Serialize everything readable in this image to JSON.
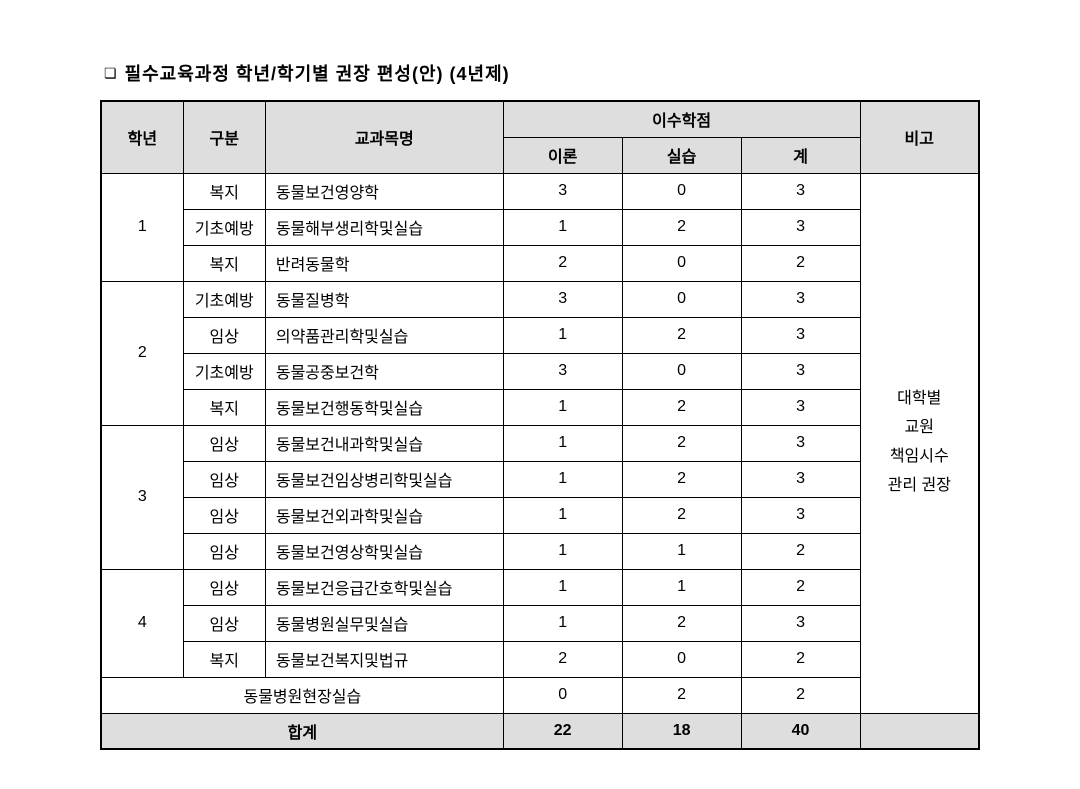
{
  "title": "필수교육과정 학년/학기별 권장 편성(안) (4년제)",
  "header": {
    "grade": "학년",
    "category": "구분",
    "subject": "교과목명",
    "credit": "이수학점",
    "theory": "이론",
    "practice": "실습",
    "total": "계",
    "note": "비고"
  },
  "groups": [
    {
      "grade": "1",
      "rows": [
        {
          "cat": "복지",
          "subject": "동물보건영양학",
          "theory": "3",
          "practice": "0",
          "total": "3"
        },
        {
          "cat": "기초예방",
          "subject": "동물해부생리학및실습",
          "theory": "1",
          "practice": "2",
          "total": "3"
        },
        {
          "cat": "복지",
          "subject": "반려동물학",
          "theory": "2",
          "practice": "0",
          "total": "2"
        }
      ]
    },
    {
      "grade": "2",
      "rows": [
        {
          "cat": "기초예방",
          "subject": "동물질병학",
          "theory": "3",
          "practice": "0",
          "total": "3"
        },
        {
          "cat": "임상",
          "subject": "의약품관리학및실습",
          "theory": "1",
          "practice": "2",
          "total": "3"
        },
        {
          "cat": "기초예방",
          "subject": "동물공중보건학",
          "theory": "3",
          "practice": "0",
          "total": "3"
        },
        {
          "cat": "복지",
          "subject": "동물보건행동학및실습",
          "theory": "1",
          "practice": "2",
          "total": "3"
        }
      ]
    },
    {
      "grade": "3",
      "rows": [
        {
          "cat": "임상",
          "subject": "동물보건내과학및실습",
          "theory": "1",
          "practice": "2",
          "total": "3"
        },
        {
          "cat": "임상",
          "subject": "동물보건임상병리학및실습",
          "theory": "1",
          "practice": "2",
          "total": "3"
        },
        {
          "cat": "임상",
          "subject": "동물보건외과학및실습",
          "theory": "1",
          "practice": "2",
          "total": "3"
        },
        {
          "cat": "임상",
          "subject": "동물보건영상학및실습",
          "theory": "1",
          "practice": "1",
          "total": "2"
        }
      ]
    },
    {
      "grade": "4",
      "rows": [
        {
          "cat": "임상",
          "subject": "동물보건응급간호학및실습",
          "theory": "1",
          "practice": "1",
          "total": "2"
        },
        {
          "cat": "임상",
          "subject": "동물병원실무및실습",
          "theory": "1",
          "practice": "2",
          "total": "3"
        },
        {
          "cat": "복지",
          "subject": "동물보건복지및법규",
          "theory": "2",
          "practice": "0",
          "total": "2"
        }
      ]
    }
  ],
  "fieldRow": {
    "subject": "동물병원현장실습",
    "theory": "0",
    "practice": "2",
    "total": "2"
  },
  "totalRow": {
    "label": "합계",
    "theory": "22",
    "practice": "18",
    "total": "40"
  },
  "noteText": "대학별<br>교원<br>책임시수<br>관리 권장",
  "noteLines": [
    "대학별",
    "교원",
    "책임시수",
    "관리 권장"
  ],
  "colors": {
    "headerBg": "#dedede",
    "border": "#000000",
    "background": "#ffffff"
  },
  "fontSizes": {
    "title": 18,
    "cell": 16
  }
}
